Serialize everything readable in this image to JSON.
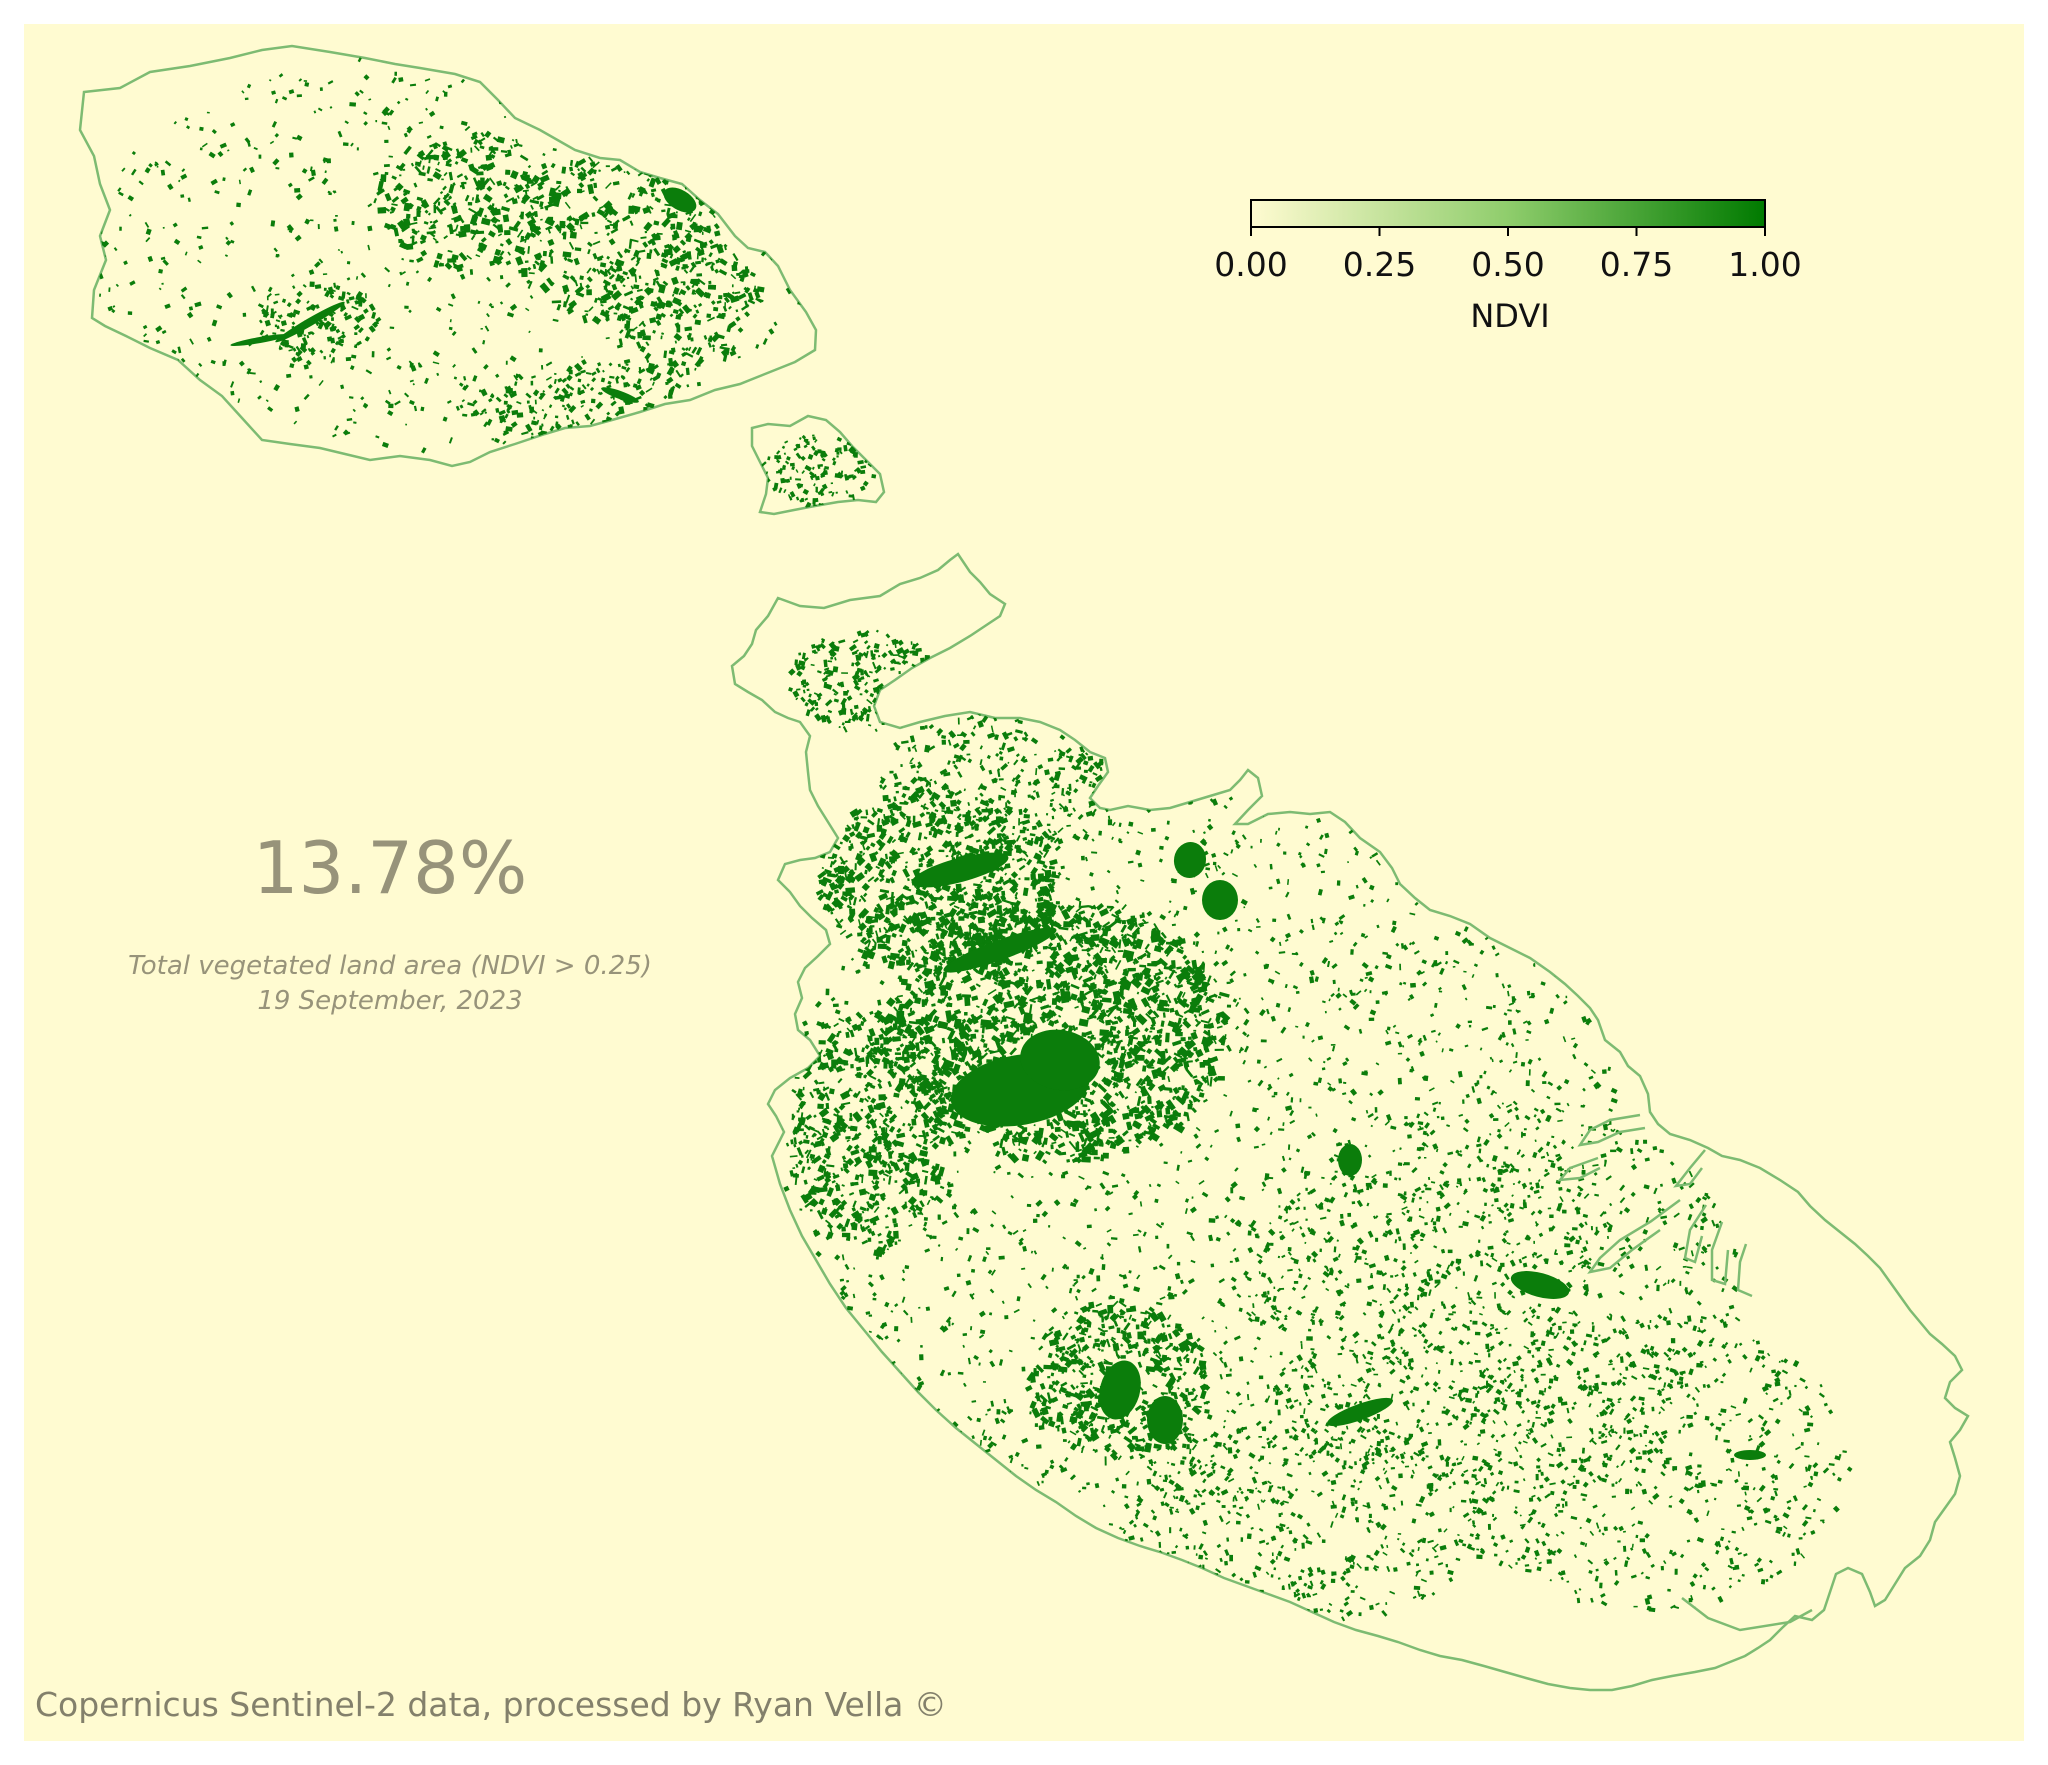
{
  "stat": {
    "value": "13.78%",
    "caption_line1": "Total vegetated land area (NDVI > 0.25)",
    "caption_line2": "19 September, 2023"
  },
  "colorbar": {
    "label": "NDVI",
    "ticks": [
      "0.00",
      "0.25",
      "0.50",
      "0.75",
      "1.00"
    ],
    "min": 0,
    "max": 1,
    "color_low": "#fffbd1",
    "color_mid": "#8fcd6c",
    "color_high": "#007a00"
  },
  "credit": "Copernicus Sentinel-2 data, processed by Ryan Vella ©",
  "colors": {
    "background": "#fffbd1",
    "land": "#fffbd1",
    "coastline": "#7dbb72",
    "vegetation": "#0b7d0b",
    "text_muted": "#97937a"
  },
  "regions": [
    {
      "name": "gozo"
    },
    {
      "name": "comino"
    },
    {
      "name": "malta"
    }
  ]
}
